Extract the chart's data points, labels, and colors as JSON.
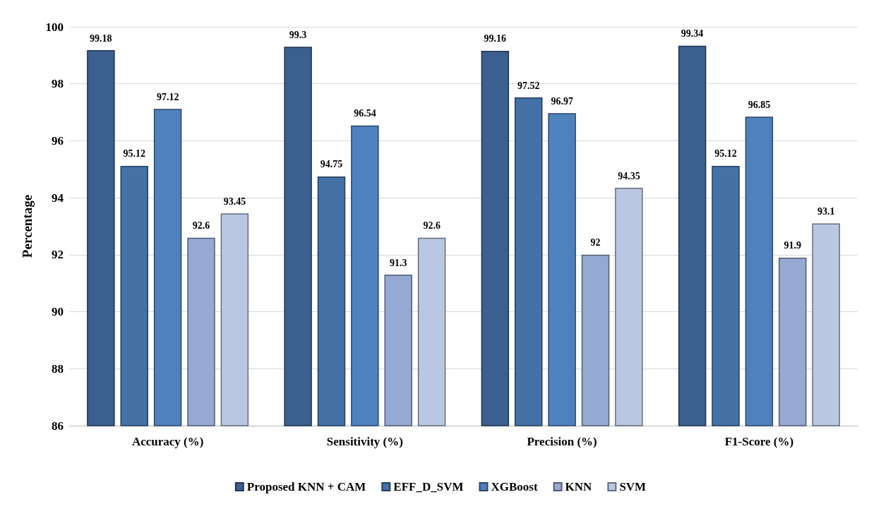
{
  "chart_data": {
    "type": "bar",
    "ylabel": "Percentage",
    "categories": [
      "Accuracy (%)",
      "Sensitivity (%)",
      "Precision (%)",
      "F1-Score (%)"
    ],
    "series": [
      {
        "name": "Proposed KNN + CAM",
        "color": "#3b5f8e",
        "values": [
          99.18,
          99.3,
          99.16,
          99.34
        ]
      },
      {
        "name": "EFF_D_SVM",
        "color": "#4472a6",
        "values": [
          95.12,
          94.75,
          97.52,
          95.12
        ]
      },
      {
        "name": "XGBoost",
        "color": "#4f81bd",
        "values": [
          97.12,
          96.54,
          96.97,
          96.85
        ]
      },
      {
        "name": "KNN",
        "color": "#95a9d2",
        "values": [
          92.6,
          91.3,
          92,
          91.9
        ]
      },
      {
        "name": "SVM",
        "color": "#b9c7e2",
        "values": [
          93.45,
          92.6,
          94.35,
          93.1
        ]
      }
    ],
    "ylim": [
      86,
      100
    ],
    "yticks": [
      86,
      88,
      90,
      92,
      94,
      96,
      98,
      100
    ],
    "grid": "y",
    "legend": "bottom",
    "data_labels": true
  }
}
